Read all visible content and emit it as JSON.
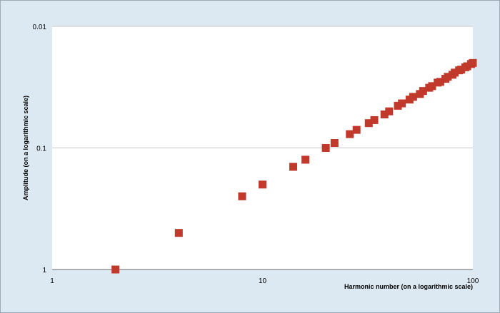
{
  "chart_data": {
    "type": "scatter",
    "title": "",
    "xlabel": "Harmonic number (on a logarithmic scale)",
    "ylabel": "Amplitude (on a logarithmic scale)",
    "x_scale": "log",
    "y_scale": "log",
    "y_reversed": true,
    "xlim": [
      1,
      100
    ],
    "ylim": [
      1,
      0.01
    ],
    "x_ticks": [
      "1",
      "10",
      "100"
    ],
    "y_ticks": [
      "0.01",
      "0.1",
      "1"
    ],
    "grid": "horizontal",
    "marker": "square",
    "colors": {
      "marker": "#c0392b",
      "plot_bg": "#ffffff",
      "page_bg": "#dde9f2",
      "grid": "#c8c8c8"
    },
    "series": [
      {
        "points": [
          {
            "x": 2,
            "y": 1
          },
          {
            "x": 4,
            "y": 0.5
          },
          {
            "x": 8,
            "y": 0.25
          },
          {
            "x": 10,
            "y": 0.2
          },
          {
            "x": 14,
            "y": 0.143
          },
          {
            "x": 16,
            "y": 0.125
          },
          {
            "x": 20,
            "y": 0.1
          },
          {
            "x": 22,
            "y": 0.091
          },
          {
            "x": 26,
            "y": 0.077
          },
          {
            "x": 28,
            "y": 0.071
          },
          {
            "x": 32,
            "y": 0.0625
          },
          {
            "x": 34,
            "y": 0.059
          },
          {
            "x": 38,
            "y": 0.053
          },
          {
            "x": 40,
            "y": 0.05
          },
          {
            "x": 44,
            "y": 0.045
          },
          {
            "x": 46,
            "y": 0.043
          },
          {
            "x": 50,
            "y": 0.04
          },
          {
            "x": 52,
            "y": 0.038
          },
          {
            "x": 56,
            "y": 0.036
          },
          {
            "x": 58,
            "y": 0.034
          },
          {
            "x": 62,
            "y": 0.032
          },
          {
            "x": 64,
            "y": 0.031
          },
          {
            "x": 68,
            "y": 0.029
          },
          {
            "x": 70,
            "y": 0.0286
          },
          {
            "x": 74,
            "y": 0.027
          },
          {
            "x": 76,
            "y": 0.026
          },
          {
            "x": 80,
            "y": 0.025
          },
          {
            "x": 82,
            "y": 0.024
          },
          {
            "x": 86,
            "y": 0.023
          },
          {
            "x": 88,
            "y": 0.0227
          },
          {
            "x": 92,
            "y": 0.0217
          },
          {
            "x": 94,
            "y": 0.0213
          },
          {
            "x": 98,
            "y": 0.0204
          },
          {
            "x": 100,
            "y": 0.02
          }
        ]
      }
    ]
  }
}
